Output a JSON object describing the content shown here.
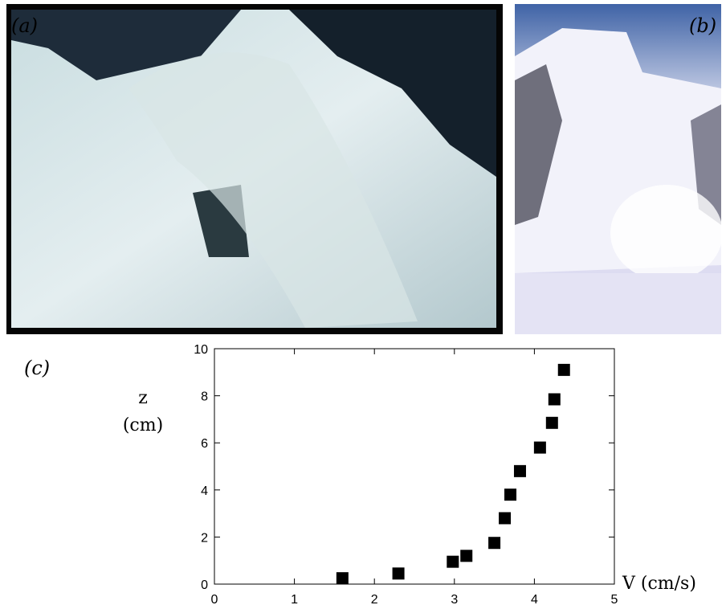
{
  "panels": {
    "a": {
      "label": "(a)"
    },
    "b": {
      "label": "(b)"
    },
    "c": {
      "label": "(c)"
    }
  },
  "chart_data": {
    "type": "scatter",
    "x": [
      1.6,
      2.3,
      2.98,
      3.15,
      3.5,
      3.63,
      3.7,
      3.82,
      4.07,
      4.22,
      4.25,
      4.37
    ],
    "values": [
      0.25,
      0.45,
      0.95,
      1.2,
      1.75,
      2.8,
      3.8,
      4.8,
      5.8,
      6.85,
      7.85,
      9.1
    ],
    "xlabel": "V (cm/s)",
    "ylabel": [
      "z",
      "(cm)"
    ],
    "xlim": [
      0,
      5
    ],
    "ylim": [
      0,
      10
    ],
    "xticks": [
      0,
      1,
      2,
      3,
      4,
      5
    ],
    "yticks": [
      0,
      2,
      4,
      6,
      8,
      10
    ],
    "color": "#000000",
    "marker": "square"
  }
}
